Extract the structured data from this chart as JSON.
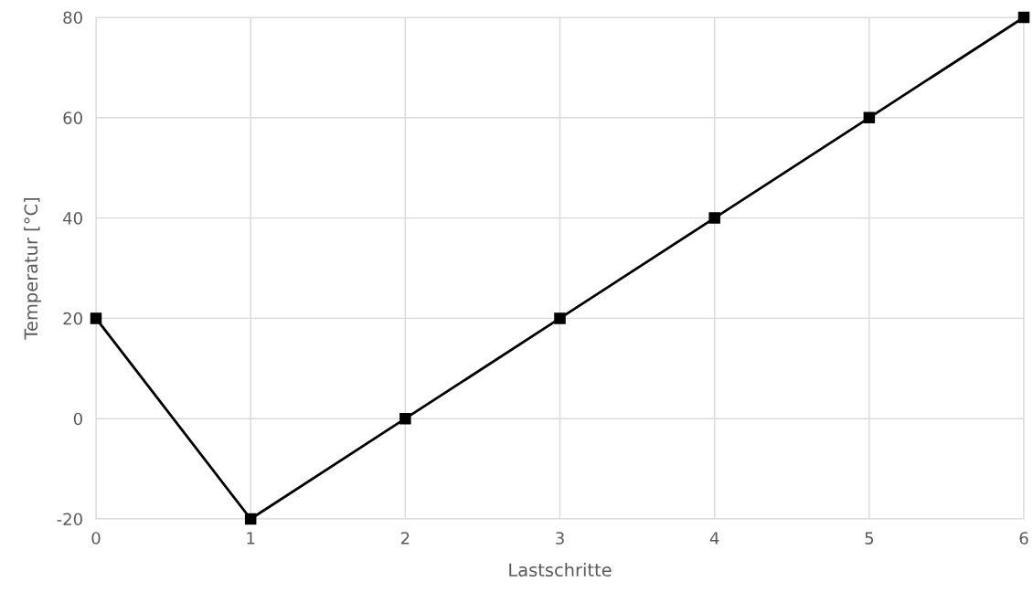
{
  "chart_data": {
    "type": "line",
    "xlabel": "Lastschritte",
    "ylabel": "Temperatur [°C]",
    "x": [
      0,
      1,
      2,
      3,
      4,
      5,
      6
    ],
    "series": [
      {
        "color": "#000000",
        "values": [
          20,
          -20,
          0,
          20,
          40,
          60,
          80
        ]
      }
    ],
    "xlim": [
      0,
      6
    ],
    "xticks": [
      0,
      1,
      2,
      3,
      4,
      5,
      6
    ],
    "ylim": [
      -20,
      80
    ],
    "yticks": [
      -20,
      0,
      20,
      40,
      60,
      80
    ],
    "grid": true,
    "marker": "square",
    "line_style": "solid"
  }
}
